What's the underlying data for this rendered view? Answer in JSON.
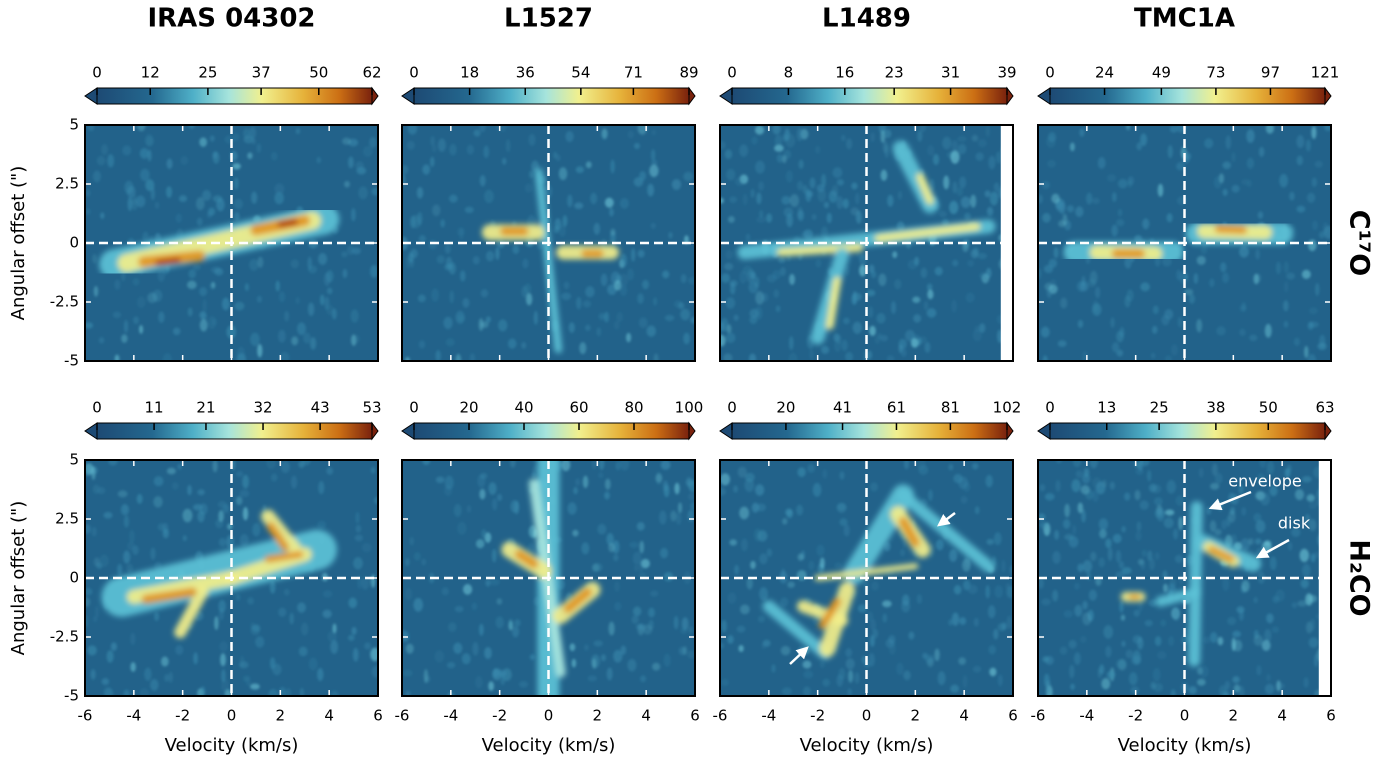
{
  "chart_data": [
    {
      "type": "heatmap",
      "title": "IRAS 04302",
      "ylabel": "Angular offset (\")",
      "xlim": [
        -6,
        6
      ],
      "xticks": [
        -6,
        -4,
        -2,
        0,
        2,
        4,
        6
      ],
      "ylim": [
        -5,
        5
      ],
      "yticks": [
        -5,
        -2.5,
        0,
        2.5,
        5
      ],
      "colorbar": {
        "lim": [
          0,
          62
        ],
        "ticks": [
          0,
          12,
          25,
          37,
          50,
          62
        ]
      }
    },
    {
      "type": "heatmap",
      "title": "L1527",
      "xlim": [
        -6,
        6
      ],
      "xticks": [
        -6,
        -4,
        -2,
        0,
        2,
        4,
        6
      ],
      "ylim": [
        -5,
        5
      ],
      "yticks": [
        -5,
        -2.5,
        0,
        2.5,
        5
      ],
      "colorbar": {
        "lim": [
          0,
          89
        ],
        "ticks": [
          0,
          18,
          36,
          54,
          71,
          89
        ]
      }
    },
    {
      "type": "heatmap",
      "title": "L1489",
      "xlim": [
        -6,
        6
      ],
      "xticks": [
        -6,
        -4,
        -2,
        0,
        2,
        4,
        6
      ],
      "ylim": [
        -5,
        5
      ],
      "yticks": [
        -5,
        -2.5,
        0,
        2.5,
        5
      ],
      "colorbar": {
        "lim": [
          0,
          39
        ],
        "ticks": [
          0,
          8,
          16,
          23,
          31,
          39
        ]
      }
    },
    {
      "type": "heatmap",
      "title": "TMC1A",
      "row_label": "C¹⁷O",
      "xlim": [
        -6,
        6
      ],
      "xticks": [
        -6,
        -4,
        -2,
        0,
        2,
        4,
        6
      ],
      "ylim": [
        -5,
        5
      ],
      "yticks": [
        -5,
        -2.5,
        0,
        2.5,
        5
      ],
      "colorbar": {
        "lim": [
          0,
          121
        ],
        "ticks": [
          0,
          24,
          49,
          73,
          97,
          121
        ]
      }
    },
    {
      "type": "heatmap",
      "ylabel": "Angular offset (\")",
      "xlabel": "Velocity (km/s)",
      "xlim": [
        -6,
        6
      ],
      "xticks": [
        -6,
        -4,
        -2,
        0,
        2,
        4,
        6
      ],
      "ylim": [
        -5,
        5
      ],
      "yticks": [
        -5,
        -2.5,
        0,
        2.5,
        5
      ],
      "colorbar": {
        "lim": [
          0,
          53
        ],
        "ticks": [
          0,
          11,
          21,
          32,
          43,
          53
        ]
      }
    },
    {
      "type": "heatmap",
      "xlabel": "Velocity (km/s)",
      "xlim": [
        -6,
        6
      ],
      "xticks": [
        -6,
        -4,
        -2,
        0,
        2,
        4,
        6
      ],
      "ylim": [
        -5,
        5
      ],
      "yticks": [
        -5,
        -2.5,
        0,
        2.5,
        5
      ],
      "colorbar": {
        "lim": [
          0,
          100
        ],
        "ticks": [
          0,
          20,
          40,
          60,
          80,
          100
        ]
      }
    },
    {
      "type": "heatmap",
      "xlabel": "Velocity (km/s)",
      "xlim": [
        -6,
        6
      ],
      "xticks": [
        -6,
        -4,
        -2,
        0,
        2,
        4,
        6
      ],
      "ylim": [
        -5,
        5
      ],
      "yticks": [
        -5,
        -2.5,
        0,
        2.5,
        5
      ],
      "colorbar": {
        "lim": [
          0,
          102
        ],
        "ticks": [
          0,
          20,
          41,
          61,
          81,
          102
        ]
      }
    },
    {
      "type": "heatmap",
      "xlabel": "Velocity (km/s)",
      "row_label": "H₂CO",
      "xlim": [
        -6,
        6
      ],
      "xticks": [
        -6,
        -4,
        -2,
        0,
        2,
        4,
        6
      ],
      "ylim": [
        -5,
        5
      ],
      "yticks": [
        -5,
        -2.5,
        0,
        2.5,
        5
      ],
      "colorbar": {
        "lim": [
          0,
          63
        ],
        "ticks": [
          0,
          13,
          25,
          38,
          50,
          63
        ]
      },
      "annotations": [
        "envelope",
        "disk"
      ]
    }
  ]
}
